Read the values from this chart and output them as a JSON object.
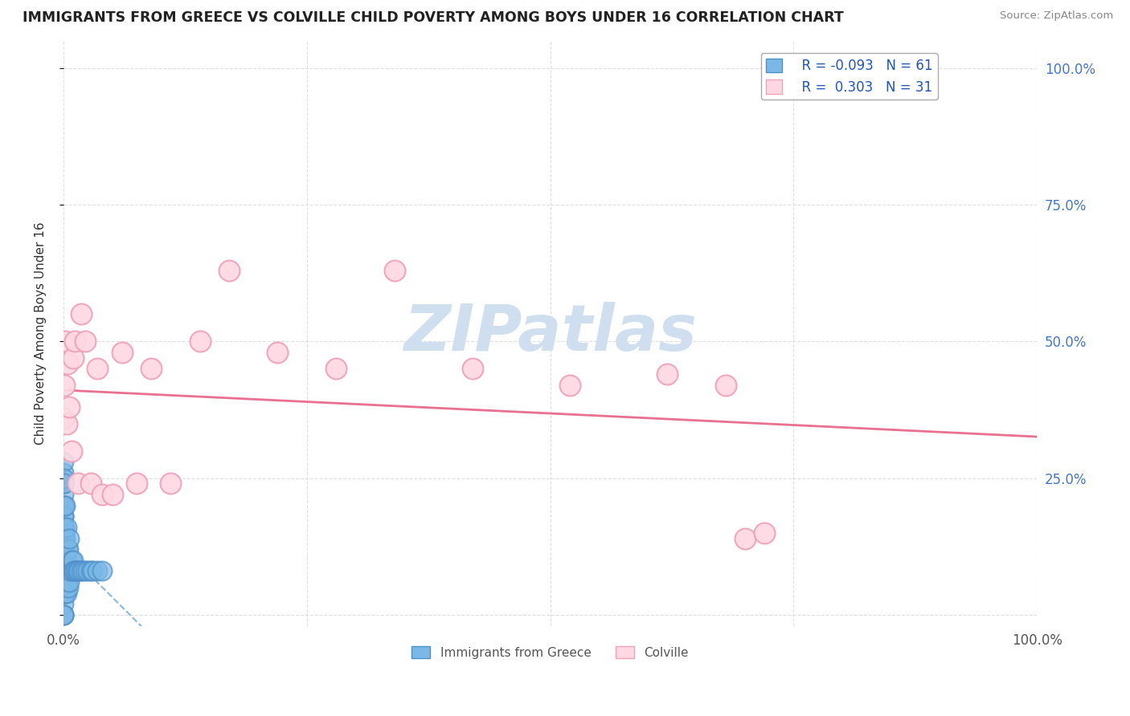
{
  "title": "IMMIGRANTS FROM GREECE VS COLVILLE CHILD POVERTY AMONG BOYS UNDER 16 CORRELATION CHART",
  "source": "Source: ZipAtlas.com",
  "ylabel": "Child Poverty Among Boys Under 16",
  "legend_blue_r": "-0.093",
  "legend_blue_n": "61",
  "legend_pink_r": "0.303",
  "legend_pink_n": "31",
  "blue_dot_color": "#7ab8e8",
  "blue_dot_edge": "#5090c8",
  "pink_dot_color": "#ffd8e4",
  "pink_dot_edge": "#f0a0b8",
  "blue_line_color": "#88b8e0",
  "pink_line_color": "#e87090",
  "watermark_color": "#d0dff0",
  "right_tick_color": "#4477cc",
  "grid_color": "#d8d8d8",
  "background_color": "#ffffff",
  "blue_points_x": [
    0.0,
    0.0,
    0.0,
    0.0,
    0.0,
    0.0,
    0.0,
    0.0,
    0.0,
    0.0,
    0.0,
    0.0,
    0.0,
    0.0,
    0.0,
    0.0,
    0.0,
    0.0,
    0.0,
    0.0,
    0.0,
    0.0,
    0.0,
    0.0,
    0.0,
    0.001,
    0.001,
    0.001,
    0.001,
    0.001,
    0.001,
    0.002,
    0.002,
    0.002,
    0.002,
    0.003,
    0.003,
    0.003,
    0.004,
    0.004,
    0.005,
    0.005,
    0.006,
    0.006,
    0.007,
    0.008,
    0.009,
    0.01,
    0.011,
    0.012,
    0.013,
    0.015,
    0.016,
    0.018,
    0.02,
    0.022,
    0.025,
    0.028,
    0.03,
    0.035,
    0.04
  ],
  "blue_points_y": [
    0.0,
    0.02,
    0.04,
    0.06,
    0.08,
    0.1,
    0.12,
    0.14,
    0.16,
    0.18,
    0.2,
    0.22,
    0.24,
    0.26,
    0.28,
    0.0,
    0.05,
    0.1,
    0.15,
    0.2,
    0.25,
    0.0,
    0.05,
    0.1,
    0.18,
    0.04,
    0.08,
    0.12,
    0.16,
    0.2,
    0.24,
    0.04,
    0.08,
    0.14,
    0.2,
    0.04,
    0.1,
    0.16,
    0.06,
    0.12,
    0.05,
    0.12,
    0.06,
    0.14,
    0.08,
    0.1,
    0.08,
    0.1,
    0.08,
    0.08,
    0.08,
    0.08,
    0.08,
    0.08,
    0.08,
    0.08,
    0.08,
    0.08,
    0.08,
    0.08,
    0.08
  ],
  "pink_points_x": [
    0.0,
    0.001,
    0.002,
    0.003,
    0.004,
    0.006,
    0.008,
    0.01,
    0.012,
    0.015,
    0.018,
    0.022,
    0.028,
    0.035,
    0.04,
    0.05,
    0.06,
    0.075,
    0.09,
    0.11,
    0.14,
    0.17,
    0.22,
    0.28,
    0.34,
    0.42,
    0.52,
    0.62,
    0.68,
    0.7,
    0.72
  ],
  "pink_points_y": [
    0.36,
    0.42,
    0.5,
    0.35,
    0.46,
    0.38,
    0.3,
    0.47,
    0.5,
    0.24,
    0.55,
    0.5,
    0.24,
    0.45,
    0.22,
    0.22,
    0.48,
    0.24,
    0.45,
    0.24,
    0.5,
    0.63,
    0.48,
    0.45,
    0.63,
    0.45,
    0.42,
    0.44,
    0.42,
    0.14,
    0.15
  ],
  "xlim": [
    0.0,
    1.0
  ],
  "ylim": [
    -0.02,
    1.05
  ],
  "ytick_vals": [
    0.0,
    0.25,
    0.5,
    0.75,
    1.0
  ],
  "xtick_vals": [
    0.0,
    0.25,
    0.5,
    0.75,
    1.0
  ]
}
